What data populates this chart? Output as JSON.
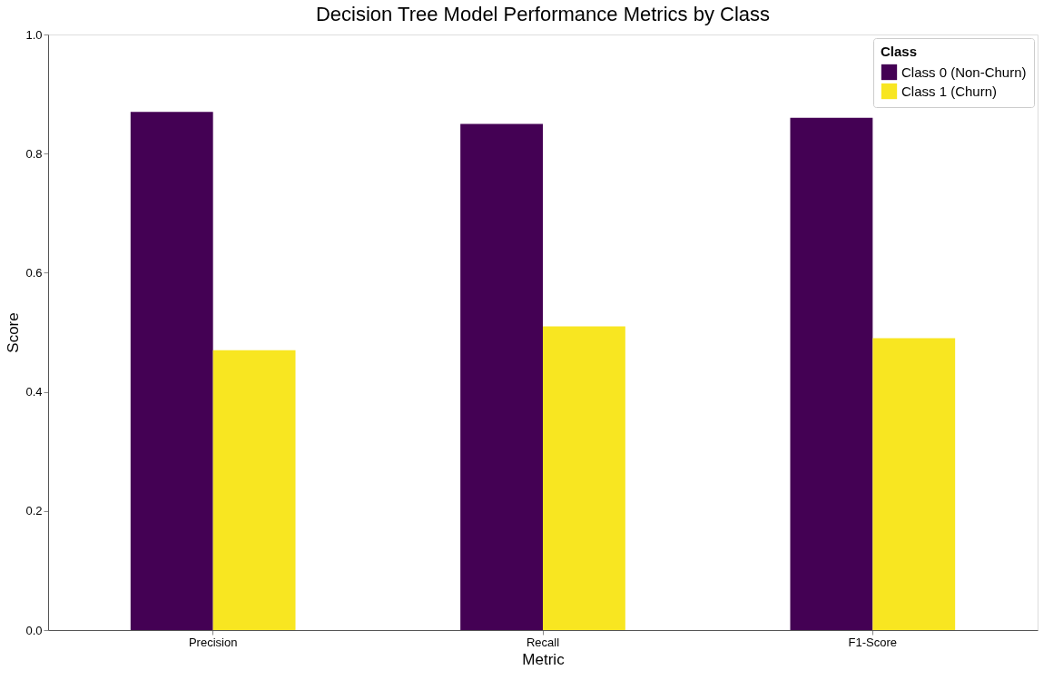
{
  "chart_data": {
    "type": "bar",
    "title": "Decision Tree Model Performance Metrics by Class",
    "xlabel": "Metric",
    "ylabel": "Score",
    "legend_title": "Class",
    "categories": [
      "Precision",
      "Recall",
      "F1-Score"
    ],
    "series": [
      {
        "name": "Class 0 (Non-Churn)",
        "color": "#440154",
        "values": [
          0.87,
          0.85,
          0.86
        ]
      },
      {
        "name": "Class 1 (Churn)",
        "color": "#f8e621",
        "values": [
          0.47,
          0.51,
          0.49
        ]
      }
    ],
    "ylim": [
      0,
      1.0
    ],
    "yticks": [
      {
        "value": 0,
        "label": "0.0"
      },
      {
        "value": 0.2,
        "label": "0.2"
      },
      {
        "value": 0.4,
        "label": "0.4"
      },
      {
        "value": 0.6,
        "label": "0.6"
      },
      {
        "value": 0.8,
        "label": "0.8"
      },
      {
        "value": 1.0,
        "label": "1.0"
      }
    ],
    "grid": false,
    "legend": "top right"
  }
}
